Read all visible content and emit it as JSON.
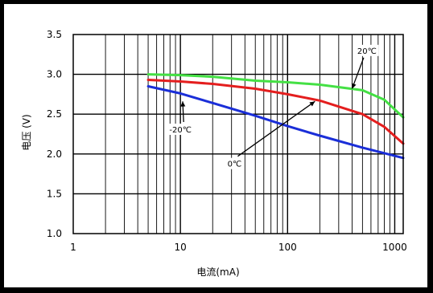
{
  "chart_data": {
    "type": "line",
    "title": "",
    "xlabel": "电流(mA)",
    "ylabel": "电压 (V)",
    "x_scale": "log",
    "xlim": [
      1,
      1200
    ],
    "ylim": [
      1.0,
      3.5
    ],
    "x_ticks": [
      1,
      10,
      100,
      1000
    ],
    "x_tick_labels": [
      "1",
      "10",
      "100",
      "1000"
    ],
    "y_ticks": [
      1.0,
      1.5,
      2.0,
      2.5,
      3.0,
      3.5
    ],
    "y_tick_labels": [
      "1.0",
      "1.5",
      "2.0",
      "2.5",
      "3.0",
      "3.5"
    ],
    "grid": true,
    "series": [
      {
        "name": "20℃",
        "color": "#44e044",
        "x": [
          5,
          10,
          20,
          50,
          100,
          200,
          500,
          800,
          1200
        ],
        "y": [
          3.0,
          2.99,
          2.97,
          2.92,
          2.9,
          2.87,
          2.8,
          2.68,
          2.46
        ]
      },
      {
        "name": "0℃",
        "color": "#e41e1e",
        "x": [
          5,
          10,
          20,
          50,
          100,
          200,
          500,
          800,
          1200
        ],
        "y": [
          2.93,
          2.91,
          2.88,
          2.82,
          2.75,
          2.67,
          2.5,
          2.34,
          2.13
        ]
      },
      {
        "name": "-20℃",
        "color": "#1a2ed8",
        "x": [
          5,
          10,
          20,
          50,
          100,
          200,
          500,
          1200
        ],
        "y": [
          2.85,
          2.76,
          2.64,
          2.48,
          2.35,
          2.23,
          2.08,
          1.95
        ]
      }
    ],
    "annotations": [
      {
        "text": "20℃",
        "x": 550,
        "y": 3.27,
        "target_x": 400,
        "target_y": 2.82
      },
      {
        "text": "0℃",
        "x": 32,
        "y": 1.85,
        "target_x": 180,
        "target_y": 2.66
      },
      {
        "text": "-20℃",
        "x": 10,
        "y": 2.28,
        "target_x": 10.5,
        "target_y": 2.66
      }
    ]
  }
}
